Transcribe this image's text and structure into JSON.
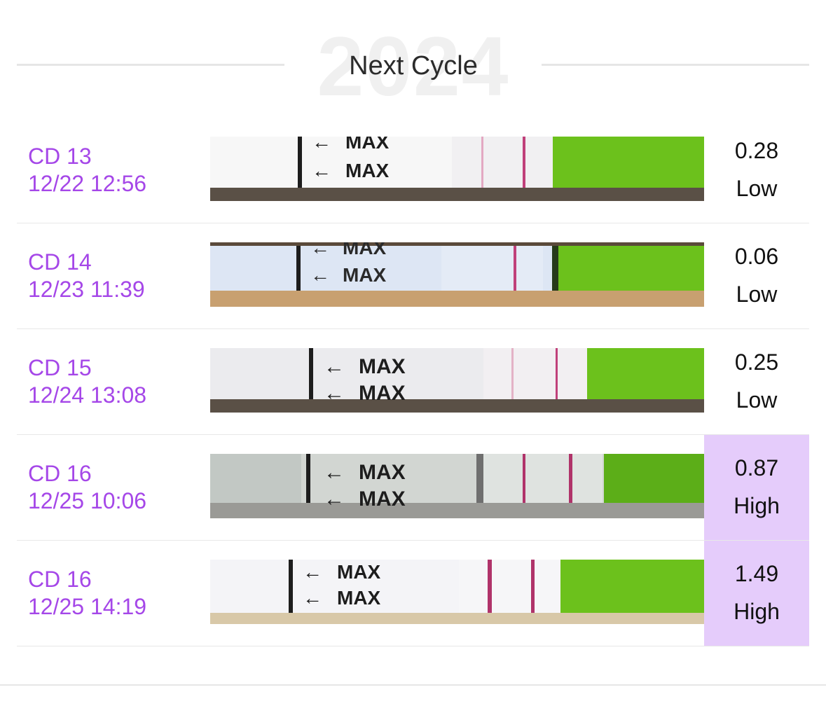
{
  "header": {
    "year": "2024",
    "title": "Next Cycle"
  },
  "colors": {
    "accent": "#a547e8",
    "high_highlight": "#e5ccfb",
    "strip_green": "#6cc11c",
    "test_line": "#c0407a"
  },
  "strip_label": "MAX",
  "tests": [
    {
      "day": "CD 13",
      "datetime": "12/22 12:56",
      "value": "0.28",
      "level": "Low"
    },
    {
      "day": "CD 14",
      "datetime": "12/23 11:39",
      "value": "0.06",
      "level": "Low"
    },
    {
      "day": "CD 15",
      "datetime": "12/24 13:08",
      "value": "0.25",
      "level": "Low"
    },
    {
      "day": "CD 16",
      "datetime": "12/25 10:06",
      "value": "0.87",
      "level": "High"
    },
    {
      "day": "CD 16",
      "datetime": "12/25 14:19",
      "value": "1.49",
      "level": "High"
    }
  ]
}
